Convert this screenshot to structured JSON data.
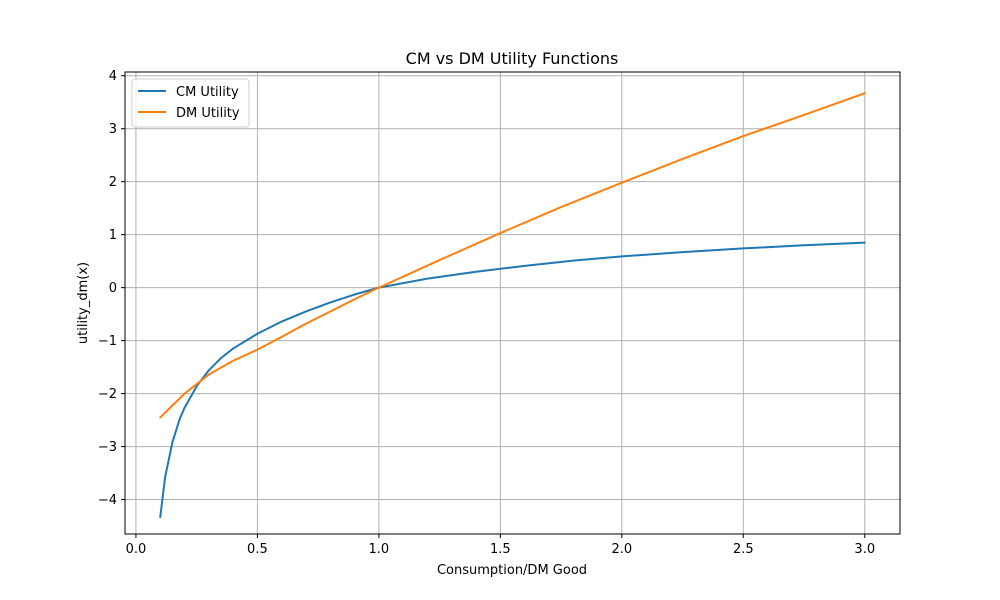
{
  "chart_data": {
    "type": "line",
    "title": "CM vs DM Utility Functions",
    "xlabel": "Consumption/DM Good",
    "ylabel": "utility_dm(x)",
    "xlim": [
      -0.045,
      3.145
    ],
    "ylim": [
      -4.65,
      4.07
    ],
    "xticks": [
      0.0,
      0.5,
      1.0,
      1.5,
      2.0,
      2.5,
      3.0
    ],
    "xtick_labels": [
      "0.0",
      "0.5",
      "1.0",
      "1.5",
      "2.0",
      "2.5",
      "3.0"
    ],
    "yticks": [
      -4,
      -3,
      -2,
      -1,
      0,
      1,
      2,
      3,
      4
    ],
    "ytick_labels": [
      "−4",
      "−3",
      "−2",
      "−1",
      "0",
      "1",
      "2",
      "3",
      "4"
    ],
    "grid": true,
    "legend": "upper left",
    "series": [
      {
        "name": "CM Utility",
        "color": "#1f77b4",
        "x": [
          0.1,
          0.12,
          0.15,
          0.18,
          0.2,
          0.25,
          0.3,
          0.35,
          0.4,
          0.5,
          0.6,
          0.7,
          0.8,
          0.9,
          1.0,
          1.2,
          1.4,
          1.6,
          1.8,
          2.0,
          2.25,
          2.5,
          2.75,
          3.0
        ],
        "y": [
          -4.33,
          -3.58,
          -2.92,
          -2.48,
          -2.27,
          -1.86,
          -1.56,
          -1.33,
          -1.15,
          -0.87,
          -0.64,
          -0.45,
          -0.28,
          -0.13,
          0.0,
          0.17,
          0.3,
          0.41,
          0.51,
          0.59,
          0.67,
          0.74,
          0.8,
          0.85
        ]
      },
      {
        "name": "DM Utility",
        "color": "#ff7f0e",
        "x": [
          0.1,
          0.2,
          0.3,
          0.4,
          0.5,
          0.6,
          0.7,
          0.8,
          0.9,
          1.0,
          1.25,
          1.5,
          1.75,
          2.0,
          2.25,
          2.5,
          2.75,
          3.0
        ],
        "y": [
          -2.45,
          -2.0,
          -1.64,
          -1.38,
          -1.17,
          -0.93,
          -0.68,
          -0.45,
          -0.22,
          0.0,
          0.52,
          1.03,
          1.52,
          1.98,
          2.43,
          2.86,
          3.26,
          3.67
        ]
      }
    ]
  }
}
